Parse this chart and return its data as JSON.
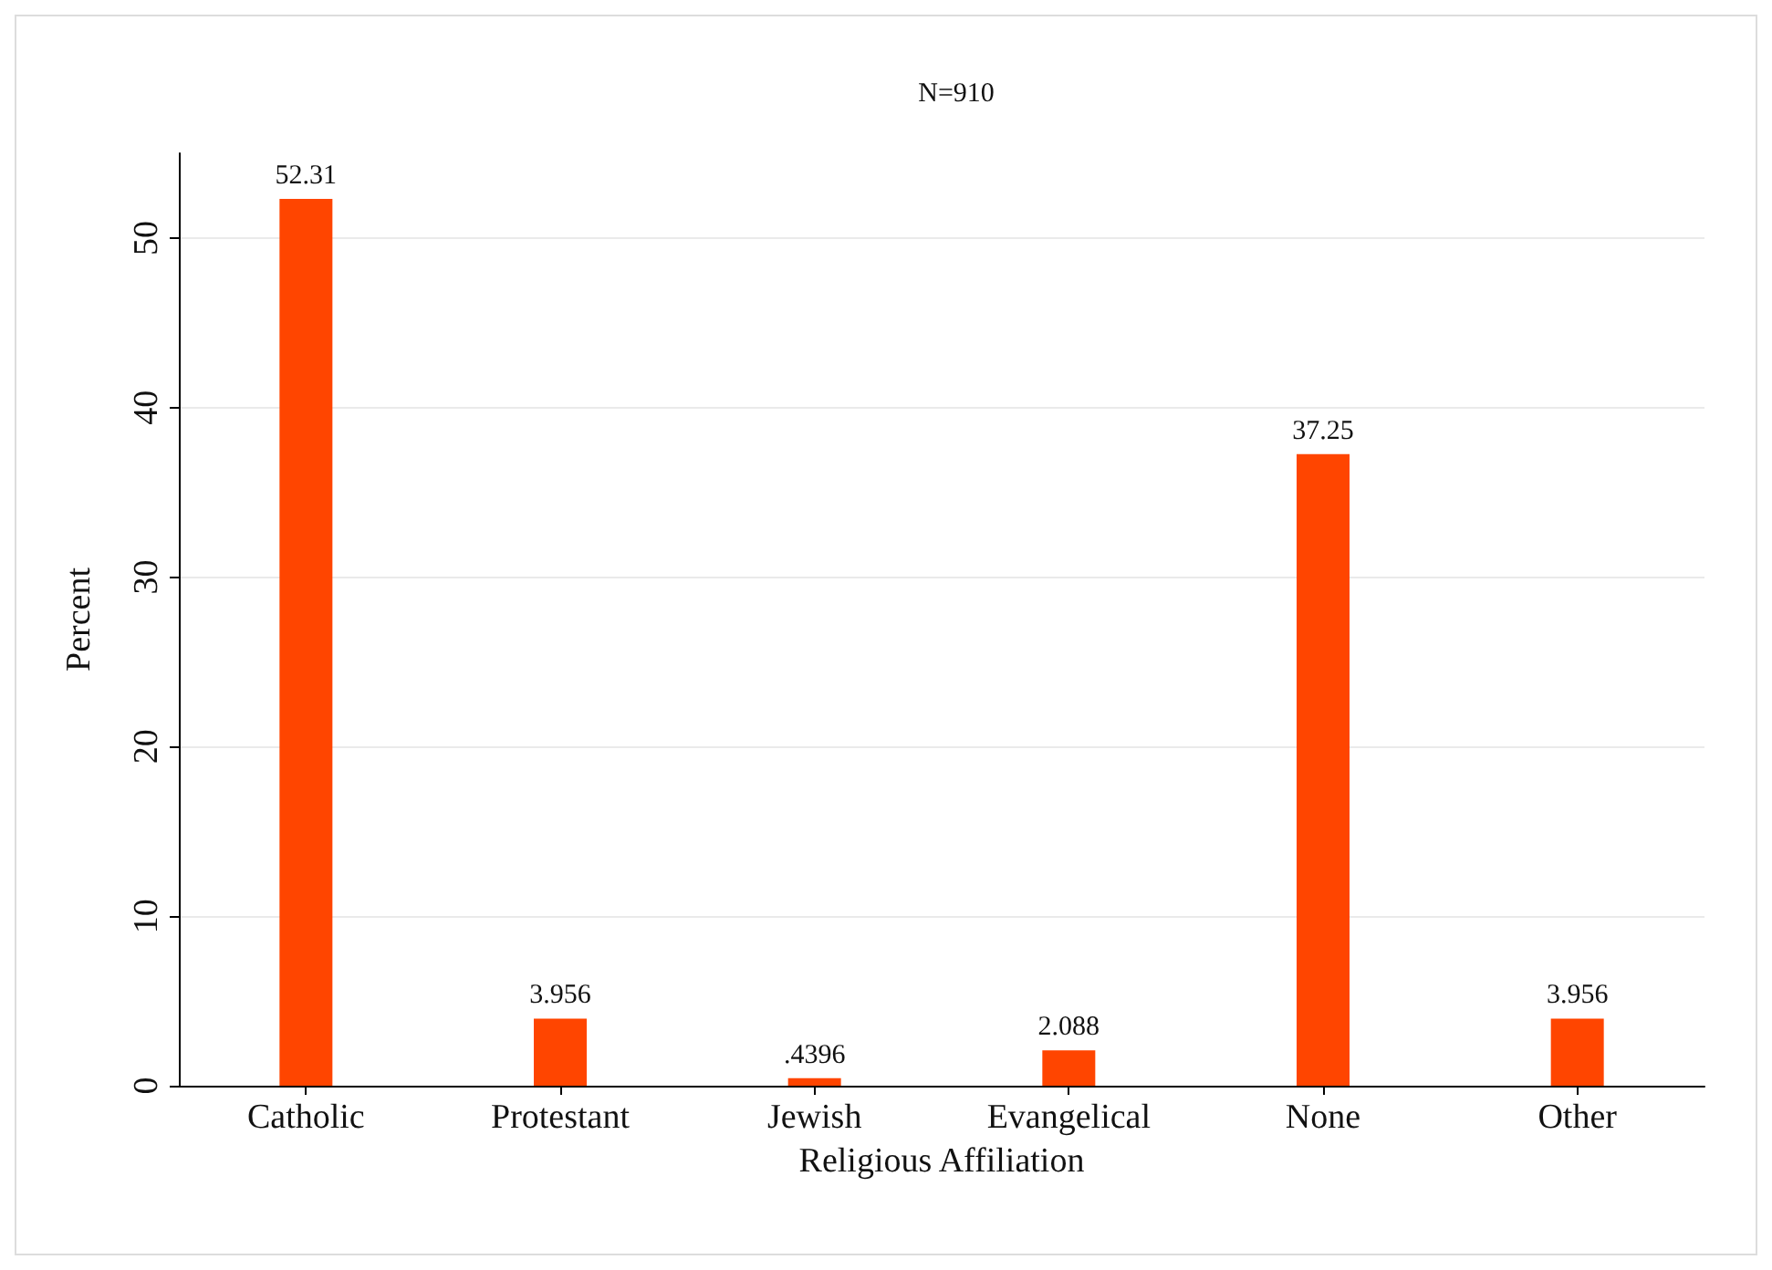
{
  "chart_data": {
    "type": "bar",
    "title": "N=910",
    "xlabel": "Religious Affiliation",
    "ylabel": "Percent",
    "categories": [
      "Catholic",
      "Protestant",
      "Jewish",
      "Evangelical",
      "None",
      "Other"
    ],
    "values": [
      52.31,
      3.956,
      0.4396,
      2.088,
      37.25,
      3.956
    ],
    "value_labels": [
      "52.31",
      "3.956",
      ".4396",
      "2.088",
      "37.25",
      "3.956"
    ],
    "color": "#ff4500",
    "ylim": [
      0,
      55
    ],
    "yticks": [
      0,
      10,
      20,
      30,
      40,
      50
    ],
    "grid": "y"
  }
}
